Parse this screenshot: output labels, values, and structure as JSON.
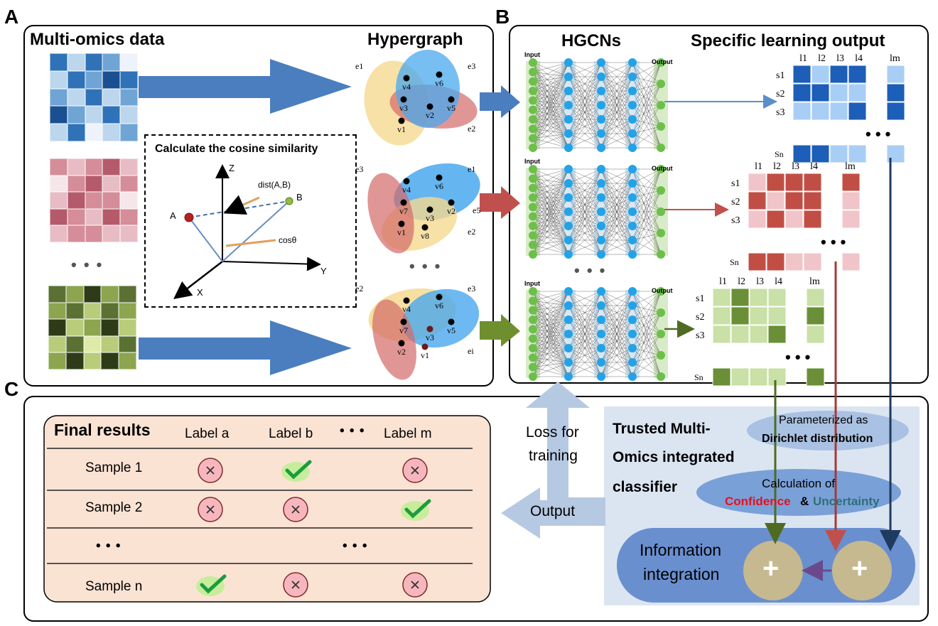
{
  "panel_a": {
    "letter": "A",
    "title": "Multi-omics data",
    "hypergraph_title": "Hypergraph",
    "cosine_box_title": "Calculate the cosine similarity",
    "axis_z": "Z",
    "axis_y": "Y",
    "axis_x": "X",
    "point_a": "A",
    "point_b": "B",
    "dist_label": "dist(A,B)",
    "cos_label": "cosθ",
    "ellipsis": "• • •"
  },
  "hypergraphs": [
    {
      "edges": [
        "e1",
        "e3",
        "e2"
      ],
      "nodes": [
        "v4",
        "v6",
        "v3",
        "v2",
        "v5",
        "v1"
      ]
    },
    {
      "edges": [
        "e3",
        "e1",
        "e2",
        "e5"
      ],
      "nodes": [
        "v4",
        "v6",
        "v7",
        "v3",
        "v2",
        "v1",
        "v8"
      ]
    },
    {
      "edges": [
        "e2",
        "e3",
        "ei"
      ],
      "nodes": [
        "v4",
        "v6",
        "v7",
        "v3",
        "v5",
        "v2",
        "v1"
      ]
    }
  ],
  "panel_b": {
    "letter": "B",
    "title": "HGCNs",
    "output_title": "Specific learning output",
    "net_input": "Input",
    "net_output": "Output",
    "ellipsis": "• • •",
    "col_labels": [
      "l1",
      "l2",
      "l3",
      "l4",
      "lm"
    ],
    "row_labels": [
      "s1",
      "s2",
      "s3",
      "Sn"
    ]
  },
  "panel_c": {
    "letter": "C",
    "final_title": "Final results",
    "labels": [
      "Label a",
      "Label b",
      "• • •",
      "Label m"
    ],
    "rows": [
      {
        "name": "Sample 1",
        "cells": [
          "x",
          "check",
          "x"
        ]
      },
      {
        "name": "Sample 2",
        "cells": [
          "x",
          "x",
          "check"
        ]
      },
      {
        "name": "• • •",
        "cells": [
          "",
          "• • •",
          ""
        ]
      },
      {
        "name": "Sample n",
        "cells": [
          "check",
          "x",
          "x"
        ]
      }
    ],
    "loss_line1": "Loss for",
    "loss_line2": "training",
    "output_label": "Output",
    "classifier_line1": "Trusted Multi-",
    "classifier_line2": "Omics integrated",
    "classifier_line3": "classifier",
    "dirichlet_line1": "Parameterized as",
    "dirichlet_line2": "Dirichlet distribution",
    "calc_line1": "Calculation of",
    "confidence": "Confidence",
    "amp": "&",
    "uncertainty": "Uncertainty",
    "info_line1": "Information",
    "info_line2": "integration",
    "plus": "+"
  },
  "colors": {
    "blue_arrow": "#4a7ebf",
    "red_arrow": "#c0504d",
    "green_arrow": "#6f8f2f",
    "confidence": "#e8101a",
    "uncertainty": "#2e6f7a",
    "final_bg": "#fbe3d4",
    "classifier_bg": "#dbe5f1"
  }
}
